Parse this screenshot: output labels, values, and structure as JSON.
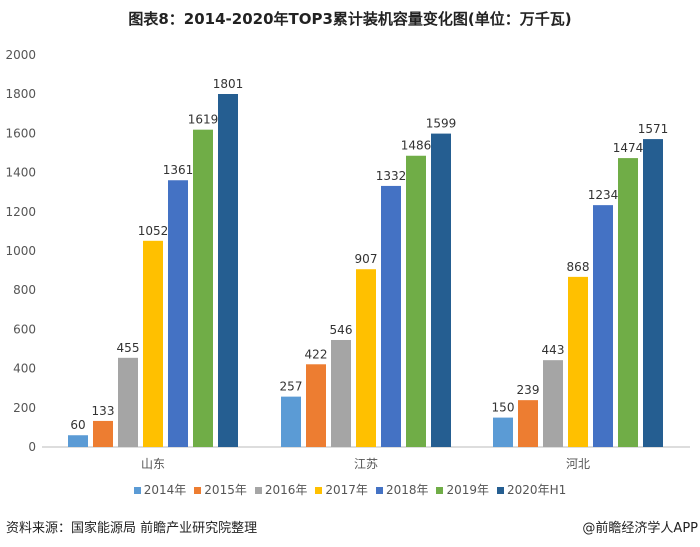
{
  "chart_data": {
    "type": "bar",
    "title": "图表8：2014-2020年TOP3累计装机容量变化图(单位：万千瓦)",
    "categories": [
      "山东",
      "江苏",
      "河北"
    ],
    "series": [
      {
        "name": "2014年",
        "color": "#5B9BD5",
        "values": [
          60,
          257,
          150
        ]
      },
      {
        "name": "2015年",
        "color": "#ED7D31",
        "values": [
          133,
          422,
          239
        ]
      },
      {
        "name": "2016年",
        "color": "#A5A5A5",
        "values": [
          455,
          546,
          443
        ]
      },
      {
        "name": "2017年",
        "color": "#FFC000",
        "values": [
          1052,
          907,
          868
        ]
      },
      {
        "name": "2018年",
        "color": "#4472C4",
        "values": [
          1361,
          1332,
          1234
        ]
      },
      {
        "name": "2019年",
        "color": "#70AD47",
        "values": [
          1619,
          1486,
          1474
        ]
      },
      {
        "name": "2020年H1",
        "color": "#255E91",
        "values": [
          1801,
          1599,
          1571
        ]
      }
    ],
    "ylim": [
      0,
      2000
    ],
    "yticks": [
      0,
      200,
      400,
      600,
      800,
      1000,
      1200,
      1400,
      1600,
      1800,
      2000
    ],
    "grid": false,
    "legend": "bottom"
  },
  "footer": {
    "source": "资料来源：国家能源局 前瞻产业研究院整理",
    "brand": "@前瞻经济学人APP"
  }
}
